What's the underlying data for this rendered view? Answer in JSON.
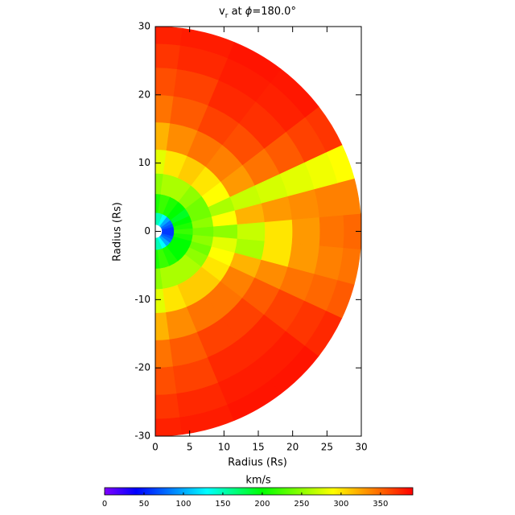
{
  "chart_data": {
    "type": "polar_heatmap",
    "title_parts": [
      "v",
      "r",
      " at ",
      "ϕ",
      "=180.0°"
    ],
    "xlabel": "Radius (Rs)",
    "ylabel": "Radius (Rs)",
    "xlim": [
      0,
      30
    ],
    "ylim": [
      -30,
      30
    ],
    "xticks": [
      0,
      5,
      10,
      15,
      20,
      25,
      30
    ],
    "yticks": [
      -30,
      -20,
      -10,
      0,
      10,
      20,
      30
    ],
    "r_range": [
      1,
      30
    ],
    "theta": [
      -90,
      -75,
      -60,
      -45,
      -30,
      -20,
      -10,
      0,
      10,
      20,
      30,
      45,
      60,
      75,
      90
    ],
    "r": [
      1.5,
      4,
      7,
      10,
      14,
      18,
      22,
      26,
      29
    ],
    "values": [
      [
        150,
        210,
        250,
        280,
        320,
        345,
        360,
        370,
        378
      ],
      [
        150,
        220,
        260,
        300,
        335,
        355,
        365,
        375,
        380
      ],
      [
        130,
        210,
        260,
        310,
        345,
        365,
        375,
        380,
        383
      ],
      [
        100,
        200,
        260,
        310,
        345,
        365,
        375,
        380,
        383
      ],
      [
        80,
        200,
        250,
        300,
        340,
        355,
        365,
        370,
        375
      ],
      [
        70,
        200,
        240,
        290,
        320,
        335,
        345,
        350,
        355
      ],
      [
        60,
        210,
        250,
        280,
        260,
        300,
        330,
        340,
        345
      ],
      [
        60,
        220,
        240,
        250,
        270,
        300,
        330,
        345,
        350
      ],
      [
        60,
        210,
        250,
        290,
        320,
        330,
        335,
        340,
        340
      ],
      [
        70,
        200,
        240,
        260,
        270,
        275,
        280,
        285,
        290
      ],
      [
        80,
        190,
        240,
        290,
        330,
        345,
        355,
        365,
        370
      ],
      [
        100,
        200,
        250,
        300,
        340,
        360,
        372,
        378,
        382
      ],
      [
        130,
        210,
        260,
        310,
        345,
        365,
        375,
        380,
        383
      ],
      [
        150,
        220,
        260,
        300,
        335,
        355,
        365,
        375,
        380
      ],
      [
        150,
        210,
        250,
        280,
        320,
        345,
        360,
        370,
        378
      ]
    ],
    "colorbar_label": "km/s",
    "clim": [
      0,
      391
    ],
    "colorbar_ticks": [
      0,
      50,
      100,
      150,
      200,
      250,
      300,
      350
    ],
    "colorscale": [
      [
        0,
        "#8000ff"
      ],
      [
        40,
        "#0000ff"
      ],
      [
        130,
        "#00ffff"
      ],
      [
        200,
        "#00ff00"
      ],
      [
        290,
        "#ffff00"
      ],
      [
        330,
        "#ff9900"
      ],
      [
        391,
        "#ff0000"
      ]
    ]
  }
}
